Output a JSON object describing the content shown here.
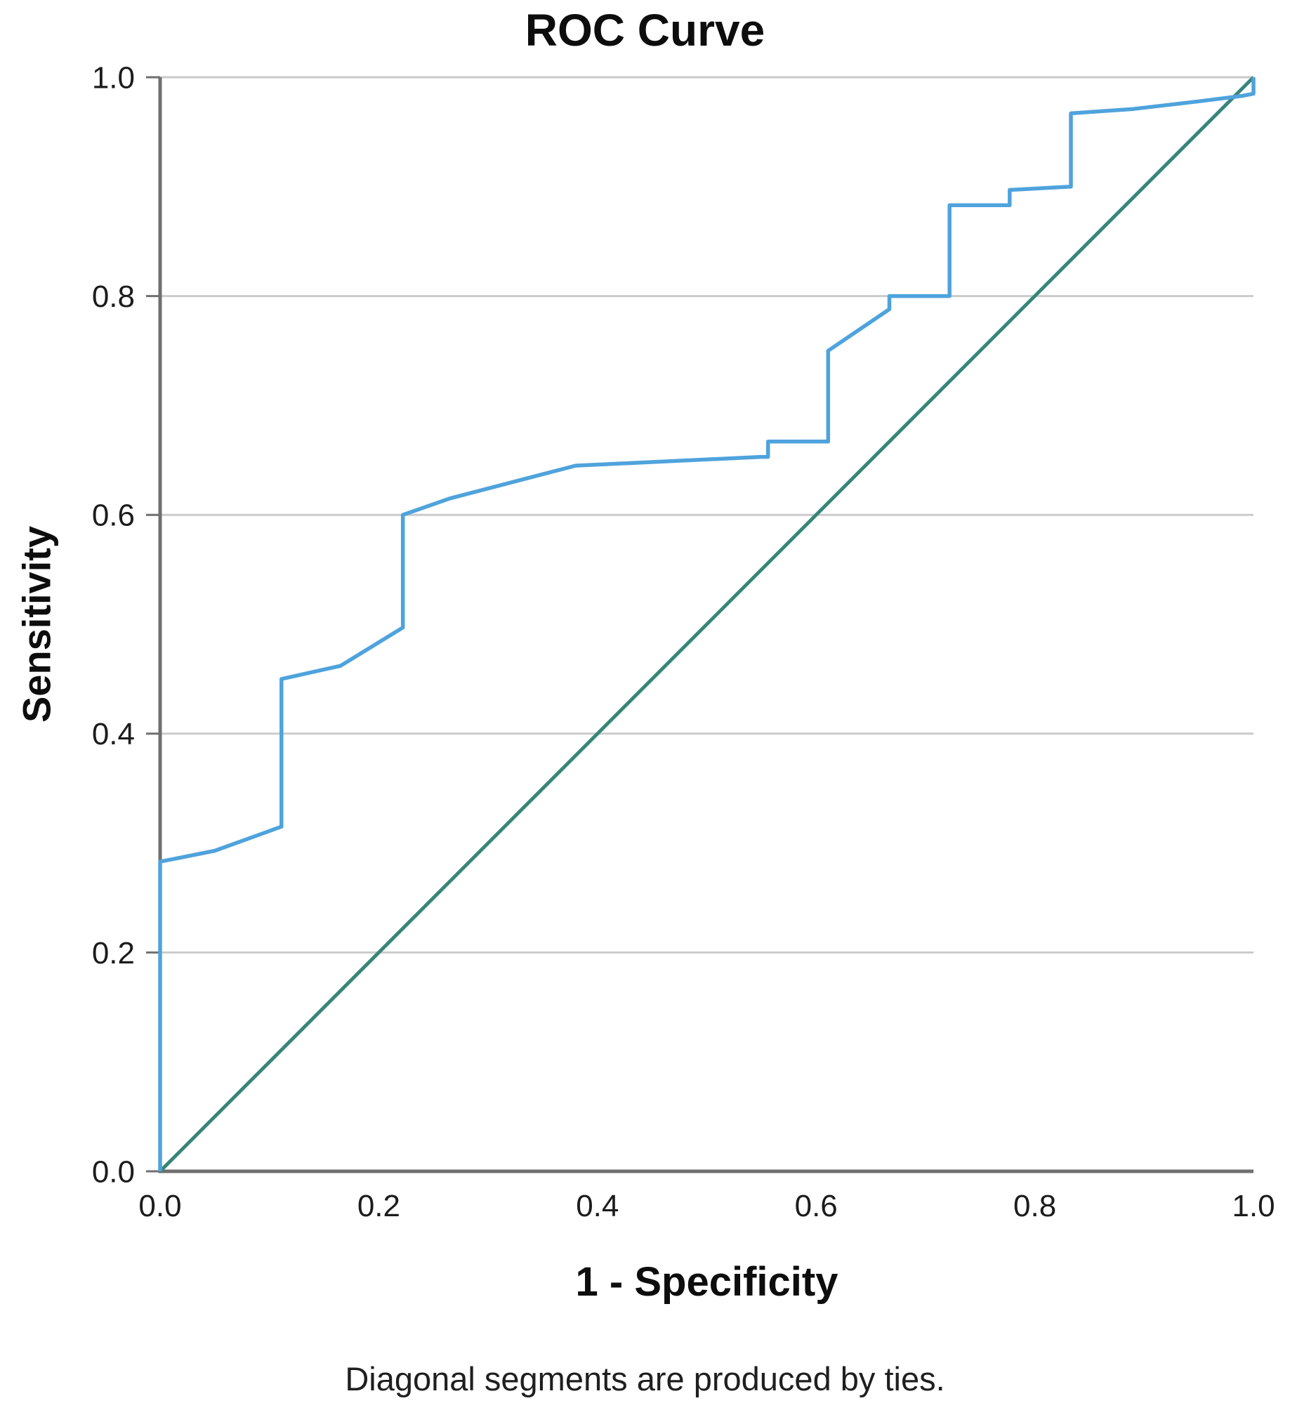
{
  "figure": {
    "title": "ROC Curve",
    "y_axis_label": "Sensitivity",
    "x_axis_label": "1 - Specificity",
    "caption": "Diagonal segments are produced by ties."
  },
  "chart_data": {
    "type": "line",
    "subtype": "roc-step-curve",
    "title": "ROC Curve",
    "xlabel": "1 - Specificity",
    "ylabel": "Sensitivity",
    "xlim": [
      0,
      1
    ],
    "ylim": [
      0,
      1
    ],
    "grid": "horizontal-only",
    "legend": "none",
    "x_ticks": {
      "values": [
        0,
        0.2,
        0.4,
        0.6,
        0.8,
        1.0
      ],
      "labels": [
        "0.0",
        "0.2",
        "0.4",
        "0.6",
        "0.8",
        "1.0"
      ]
    },
    "y_ticks": {
      "values": [
        0,
        0.2,
        0.4,
        0.6,
        0.8,
        1.0
      ],
      "labels": [
        "0.0",
        "0.2",
        "0.4",
        "0.6",
        "0.8",
        "1.0"
      ]
    },
    "colors": {
      "roc_curve": "#4fa3dc",
      "reference_line": "#38857a",
      "gridline": "#cbcbcb",
      "axis": "#6f6f6f",
      "text": "#1c1c1c"
    },
    "series": [
      {
        "name": "ROC curve",
        "color": "#4fa3dc",
        "points": [
          [
            0,
            0
          ],
          [
            0,
            0.283
          ],
          [
            0.05,
            0.293
          ],
          [
            0.111,
            0.315
          ],
          [
            0.111,
            0.45
          ],
          [
            0.165,
            0.462
          ],
          [
            0.222,
            0.497
          ],
          [
            0.222,
            0.6
          ],
          [
            0.265,
            0.615
          ],
          [
            0.38,
            0.645
          ],
          [
            0.55,
            0.653
          ],
          [
            0.556,
            0.653
          ],
          [
            0.556,
            0.667
          ],
          [
            0.611,
            0.667
          ],
          [
            0.611,
            0.75
          ],
          [
            0.667,
            0.788
          ],
          [
            0.667,
            0.8
          ],
          [
            0.722,
            0.8
          ],
          [
            0.722,
            0.883
          ],
          [
            0.777,
            0.883
          ],
          [
            0.777,
            0.897
          ],
          [
            0.833,
            0.9
          ],
          [
            0.833,
            0.967
          ],
          [
            0.89,
            0.971
          ],
          [
            0.95,
            0.978
          ],
          [
            0.99,
            0.983
          ],
          [
            1,
            0.985
          ],
          [
            1,
            1
          ]
        ]
      },
      {
        "name": "Reference line",
        "color": "#38857a",
        "points": [
          [
            0,
            0
          ],
          [
            1,
            1
          ]
        ]
      }
    ],
    "caption": "Diagonal segments are produced by ties."
  }
}
